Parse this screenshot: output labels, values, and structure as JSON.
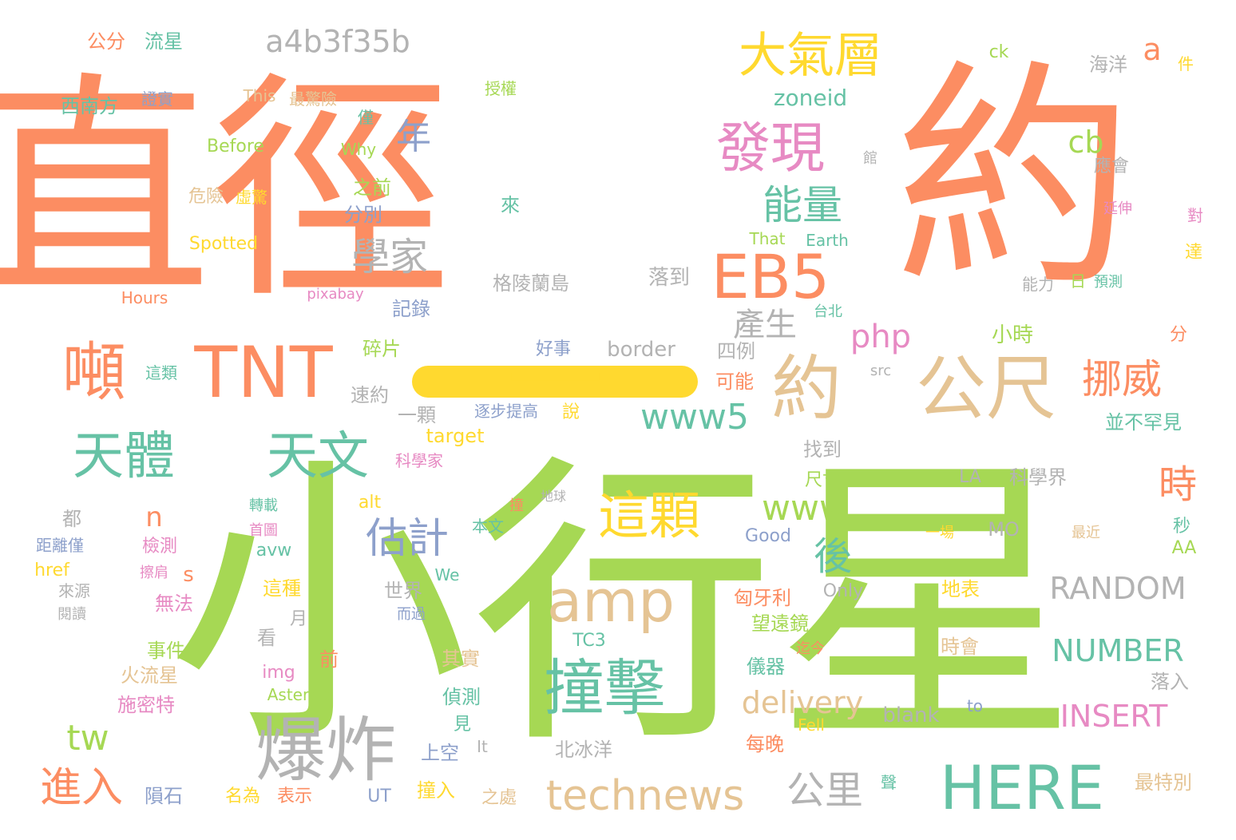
{
  "palette": {
    "orange": "#fc8d62",
    "green": "#a6d854",
    "teal": "#66c2a5",
    "yellow": "#ffd92f",
    "tan": "#e5c494",
    "gray": "#b3b3b3",
    "pink": "#e78ac3",
    "blue": "#8da0cb"
  },
  "words": [
    {
      "text": "直徑",
      "color": "orange"
    },
    {
      "text": "約",
      "color": "orange"
    },
    {
      "text": "小行星",
      "color": "green"
    },
    {
      "text": "一",
      "color": "yellow"
    },
    {
      "text": "TNT",
      "color": "orange"
    },
    {
      "text": "噸",
      "color": "orange"
    },
    {
      "text": "約",
      "color": "tan"
    },
    {
      "text": "公尺",
      "color": "tan"
    },
    {
      "text": "爆炸",
      "color": "gray"
    },
    {
      "text": "撞擊",
      "color": "teal"
    },
    {
      "text": "amp",
      "color": "tan"
    },
    {
      "text": "HERE",
      "color": "teal"
    },
    {
      "text": "EB5",
      "color": "orange"
    },
    {
      "text": "發現",
      "color": "pink"
    },
    {
      "text": "大氣層",
      "color": "yellow"
    },
    {
      "text": "天體",
      "color": "teal"
    },
    {
      "text": "天文",
      "color": "teal"
    },
    {
      "text": "這顆",
      "color": "yellow"
    },
    {
      "text": "technews",
      "color": "tan"
    },
    {
      "text": "a4b3f35b",
      "color": "gray"
    },
    {
      "text": "能量",
      "color": "teal"
    },
    {
      "text": "學家",
      "color": "gray"
    },
    {
      "text": "年",
      "color": "blue"
    },
    {
      "text": "www5",
      "color": "teal"
    },
    {
      "text": "挪威",
      "color": "orange"
    },
    {
      "text": "進入",
      "color": "orange"
    },
    {
      "text": "公里",
      "color": "gray"
    },
    {
      "text": "估計",
      "color": "blue"
    },
    {
      "text": "www",
      "color": "green"
    },
    {
      "text": "RANDOM",
      "color": "gray"
    },
    {
      "text": "時",
      "color": "orange"
    },
    {
      "text": "後",
      "color": "teal"
    },
    {
      "text": "delivery",
      "color": "tan"
    },
    {
      "text": "NUMBER",
      "color": "teal"
    },
    {
      "text": "INSERT",
      "color": "pink"
    },
    {
      "text": "tw",
      "color": "green"
    },
    {
      "text": "php",
      "color": "pink"
    },
    {
      "text": "產生",
      "color": "gray"
    },
    {
      "text": "cb",
      "color": "green"
    },
    {
      "text": "a",
      "color": "orange"
    },
    {
      "text": "zoneid",
      "color": "teal"
    },
    {
      "text": "n",
      "color": "orange"
    },
    {
      "text": "s",
      "color": "orange"
    },
    {
      "text": "公分",
      "color": "orange"
    },
    {
      "text": "流星",
      "color": "teal"
    },
    {
      "text": "西南方",
      "color": "teal"
    },
    {
      "text": "證實",
      "color": "blue"
    },
    {
      "text": "This",
      "color": "tan"
    },
    {
      "text": "最驚險",
      "color": "tan"
    },
    {
      "text": "Before",
      "color": "green"
    },
    {
      "text": "危險",
      "color": "tan"
    },
    {
      "text": "虛驚",
      "color": "yellow"
    },
    {
      "text": "Spotted",
      "color": "yellow"
    },
    {
      "text": "Hours",
      "color": "orange"
    },
    {
      "text": "pixabay",
      "color": "pink"
    },
    {
      "text": "Why",
      "color": "green"
    },
    {
      "text": "授權",
      "color": "green"
    },
    {
      "text": "僅",
      "color": "teal"
    },
    {
      "text": "之前",
      "color": "green"
    },
    {
      "text": "分別",
      "color": "blue"
    },
    {
      "text": "來",
      "color": "teal"
    },
    {
      "text": "ck",
      "color": "green"
    },
    {
      "text": "海洋",
      "color": "gray"
    },
    {
      "text": "件",
      "color": "yellow"
    },
    {
      "text": "館",
      "color": "gray"
    },
    {
      "text": "應會",
      "color": "gray"
    },
    {
      "text": "延伸",
      "color": "pink"
    },
    {
      "text": "對",
      "color": "pink"
    },
    {
      "text": "達",
      "color": "yellow"
    },
    {
      "text": "That",
      "color": "green"
    },
    {
      "text": "Earth",
      "color": "teal"
    },
    {
      "text": "格陵蘭島",
      "color": "gray"
    },
    {
      "text": "落到",
      "color": "gray"
    },
    {
      "text": "記錄",
      "color": "blue"
    },
    {
      "text": "台北",
      "color": "teal"
    },
    {
      "text": "能力",
      "color": "gray"
    },
    {
      "text": "日",
      "color": "green"
    },
    {
      "text": "預測",
      "color": "teal"
    },
    {
      "text": "小時",
      "color": "green"
    },
    {
      "text": "分",
      "color": "orange"
    },
    {
      "text": "碎片",
      "color": "green"
    },
    {
      "text": "好事",
      "color": "blue"
    },
    {
      "text": "border",
      "color": "gray"
    },
    {
      "text": "四例",
      "color": "gray"
    },
    {
      "text": "可能",
      "color": "orange"
    },
    {
      "text": "這類",
      "color": "teal"
    },
    {
      "text": "速約",
      "color": "gray"
    },
    {
      "text": "一顆",
      "color": "gray"
    },
    {
      "text": "逐步提高",
      "color": "blue"
    },
    {
      "text": "說",
      "color": "yellow"
    },
    {
      "text": "src",
      "color": "gray"
    },
    {
      "text": "並不罕見",
      "color": "teal"
    },
    {
      "text": "target",
      "color": "yellow"
    },
    {
      "text": "科學家",
      "color": "pink"
    },
    {
      "text": "找到",
      "color": "gray"
    },
    {
      "text": "尺寸",
      "color": "green"
    },
    {
      "text": "LA",
      "color": "gray"
    },
    {
      "text": "科學界",
      "color": "gray"
    },
    {
      "text": "都",
      "color": "gray"
    },
    {
      "text": "alt",
      "color": "yellow"
    },
    {
      "text": "轉載",
      "color": "teal"
    },
    {
      "text": "撞",
      "color": "orange"
    },
    {
      "text": "地球",
      "color": "gray"
    },
    {
      "text": "本文",
      "color": "teal"
    },
    {
      "text": "首圖",
      "color": "pink"
    },
    {
      "text": "Good",
      "color": "blue"
    },
    {
      "text": "一場",
      "color": "yellow"
    },
    {
      "text": "MO",
      "color": "gray"
    },
    {
      "text": "最近",
      "color": "tan"
    },
    {
      "text": "秒",
      "color": "teal"
    },
    {
      "text": "AA",
      "color": "green"
    },
    {
      "text": "距離僅",
      "color": "blue"
    },
    {
      "text": "檢測",
      "color": "pink"
    },
    {
      "text": "avw",
      "color": "teal"
    },
    {
      "text": "href",
      "color": "yellow"
    },
    {
      "text": "擦肩",
      "color": "pink"
    },
    {
      "text": "We",
      "color": "teal"
    },
    {
      "text": "世界",
      "color": "gray"
    },
    {
      "text": "來源",
      "color": "gray"
    },
    {
      "text": "閱讀",
      "color": "gray"
    },
    {
      "text": "無法",
      "color": "pink"
    },
    {
      "text": "這種",
      "color": "yellow"
    },
    {
      "text": "月",
      "color": "gray"
    },
    {
      "text": "而過",
      "color": "blue"
    },
    {
      "text": "Only",
      "color": "gray"
    },
    {
      "text": "匈牙利",
      "color": "orange"
    },
    {
      "text": "地表",
      "color": "yellow"
    },
    {
      "text": "望遠鏡",
      "color": "green"
    },
    {
      "text": "看",
      "color": "gray"
    },
    {
      "text": "事件",
      "color": "green"
    },
    {
      "text": "TC3",
      "color": "teal"
    },
    {
      "text": "迄今",
      "color": "orange"
    },
    {
      "text": "時會",
      "color": "tan"
    },
    {
      "text": "前",
      "color": "orange"
    },
    {
      "text": "火流星",
      "color": "tan"
    },
    {
      "text": "img",
      "color": "pink"
    },
    {
      "text": "其實",
      "color": "tan"
    },
    {
      "text": "儀器",
      "color": "teal"
    },
    {
      "text": "Asteroid",
      "color": "green"
    },
    {
      "text": "施密特",
      "color": "pink"
    },
    {
      "text": "偵測",
      "color": "teal"
    },
    {
      "text": "落入",
      "color": "gray"
    },
    {
      "text": "blank",
      "color": "gray"
    },
    {
      "text": "to",
      "color": "blue"
    },
    {
      "text": "見",
      "color": "teal"
    },
    {
      "text": "Fell",
      "color": "yellow"
    },
    {
      "text": "It",
      "color": "gray"
    },
    {
      "text": "上空",
      "color": "blue"
    },
    {
      "text": "北冰洋",
      "color": "gray"
    },
    {
      "text": "每晚",
      "color": "orange"
    },
    {
      "text": "聲",
      "color": "teal"
    },
    {
      "text": "最特別",
      "color": "tan"
    },
    {
      "text": "隕石",
      "color": "blue"
    },
    {
      "text": "名為",
      "color": "yellow"
    },
    {
      "text": "表示",
      "color": "orange"
    },
    {
      "text": "UT",
      "color": "blue"
    },
    {
      "text": "撞入",
      "color": "yellow"
    },
    {
      "text": "之處",
      "color": "tan"
    }
  ]
}
